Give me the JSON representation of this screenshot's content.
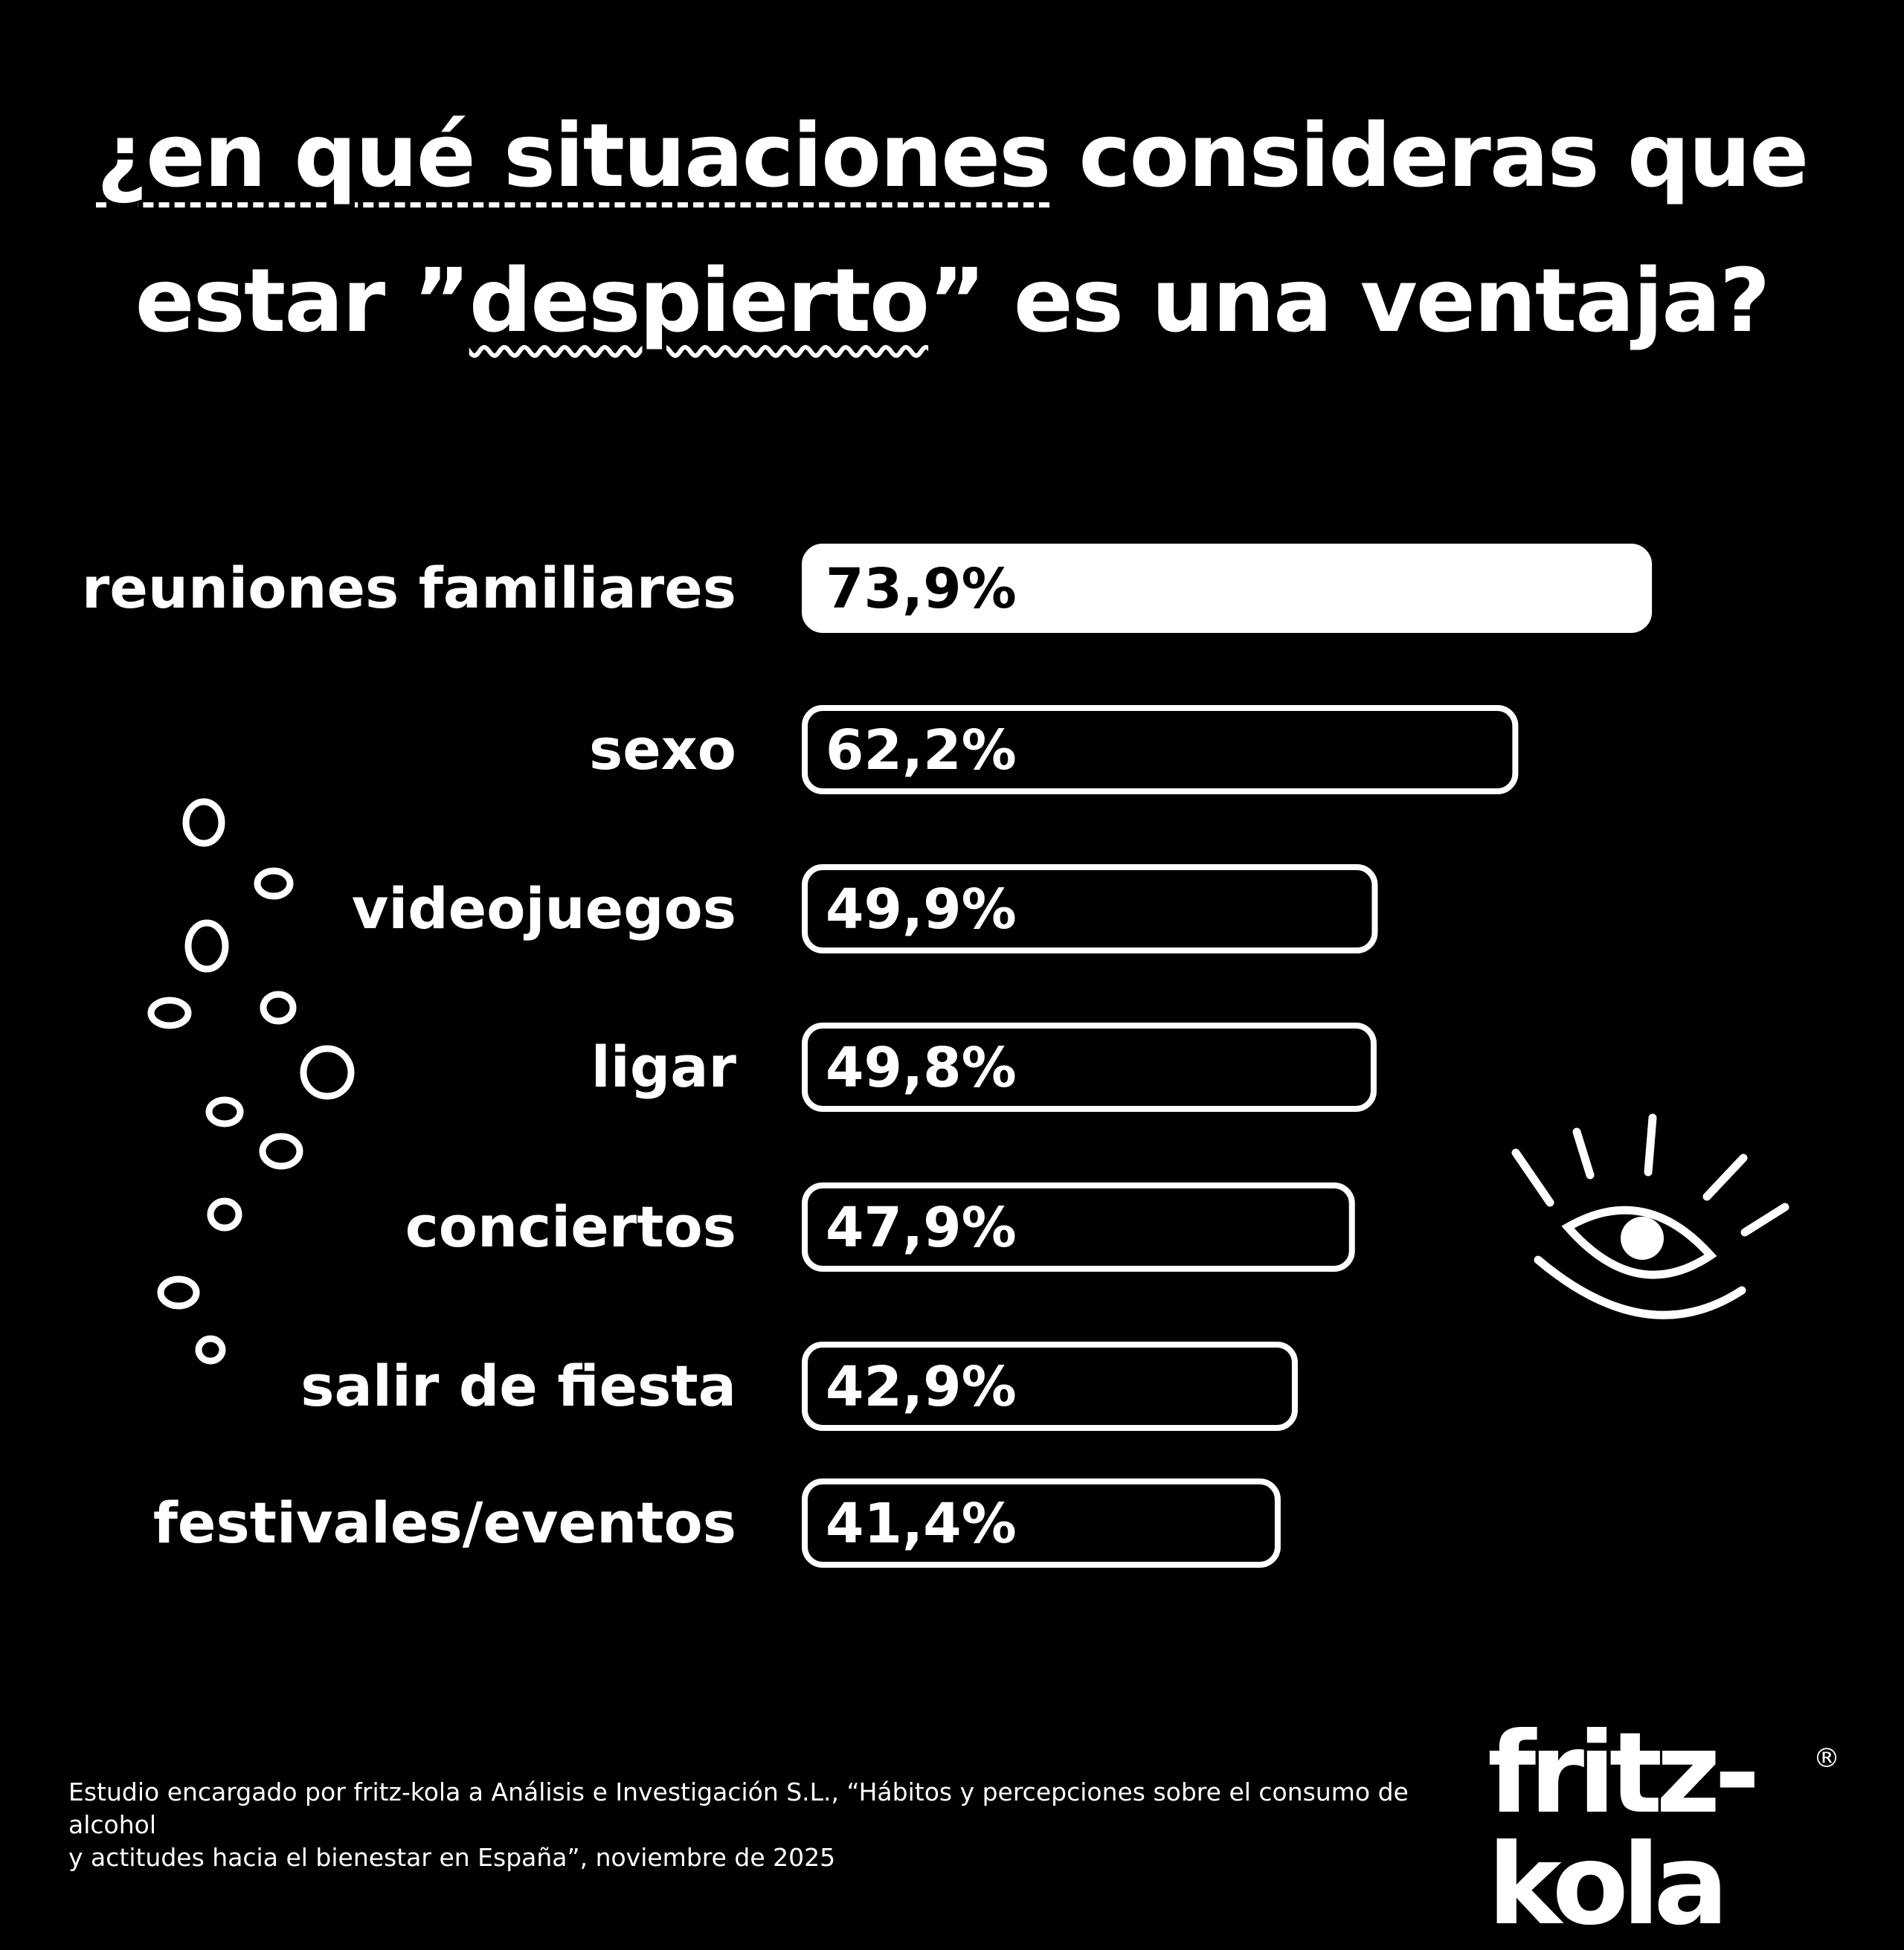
{
  "title": {
    "line1_highlight": "¿en qué situaciones",
    "line1_rest": " consideras que",
    "line2_start": "estar ”",
    "line2_highlight": "despierto",
    "line2_end": "” es una ventaja?"
  },
  "chart_data": {
    "type": "bar",
    "orientation": "horizontal",
    "categories": [
      "reuniones familiares",
      "sexo",
      "videojuegos",
      "ligar",
      "conciertos",
      "salir de fiesta",
      "festivales/eventos"
    ],
    "values": [
      73.9,
      62.2,
      49.9,
      49.8,
      47.9,
      42.9,
      41.4
    ],
    "value_labels": [
      "73,9%",
      "62,2%",
      "49,9%",
      "49,8%",
      "47,9%",
      "42,9%",
      "41,4%"
    ],
    "unit": "%",
    "highlight_index": 0,
    "xlim": [
      0,
      100
    ],
    "grid": false,
    "legend": "none"
  },
  "colors": {
    "background": "#000000",
    "foreground": "#ffffff"
  },
  "decorations": {
    "left": "bubbles-icon",
    "right": "eye-icon"
  },
  "footnote": {
    "line1": "Estudio encargado por fritz-kola a Análisis e Investigación S.L., “Hábitos y percepciones sobre el consumo de alcohol",
    "line2": "y actitudes hacia el bienestar en España”, noviembre de 2025"
  },
  "brand": {
    "logo_text": "fritz-kola",
    "registered": "®"
  }
}
